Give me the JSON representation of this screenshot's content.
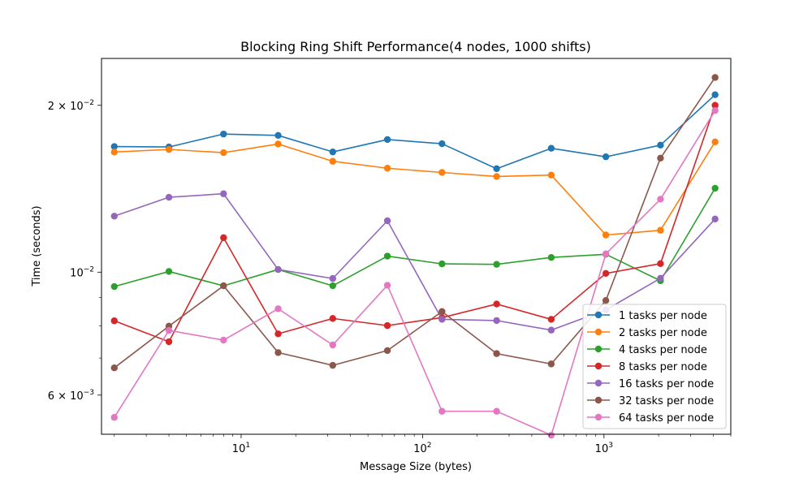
{
  "chart_data": {
    "type": "line",
    "title": "Blocking Ring Shift Performance(4 nodes, 1000 shifts)",
    "xlabel": "Message Size (bytes)",
    "ylabel": "Time (seconds)",
    "xscale": "log",
    "yscale": "log",
    "xlim": [
      1.7,
      5000
    ],
    "ylim": [
      0.0051,
      0.0243
    ],
    "x_tick_labels": [
      {
        "value": 10,
        "base": "10",
        "exp": "1"
      },
      {
        "value": 100,
        "base": "10",
        "exp": "2"
      },
      {
        "value": 1000,
        "base": "10",
        "exp": "3"
      }
    ],
    "y_tick_labels": [
      {
        "value": 0.006,
        "mantissa": "6 × 10",
        "exp": "−3"
      },
      {
        "value": 0.01,
        "mantissa": "10",
        "exp": "−2"
      },
      {
        "value": 0.02,
        "mantissa": "2 × 10",
        "exp": "−2"
      }
    ],
    "grid": false,
    "legend_position": "lower-right",
    "x": [
      2,
      4,
      8,
      16,
      32,
      64,
      128,
      256,
      512,
      1024,
      2048,
      4096
    ],
    "series": [
      {
        "name": "1 tasks per node",
        "color": "#1f77b4",
        "values": [
          0.01685,
          0.01682,
          0.01775,
          0.01765,
          0.01648,
          0.01735,
          0.01705,
          0.01537,
          0.01673,
          0.01615,
          0.01695,
          0.0209
        ]
      },
      {
        "name": "2 tasks per node",
        "color": "#ff7f0e",
        "values": [
          0.01647,
          0.01665,
          0.01643,
          0.01703,
          0.01585,
          0.0154,
          0.01513,
          0.01488,
          0.01497,
          0.01167,
          0.0119,
          0.01718
        ]
      },
      {
        "name": "4 tasks per node",
        "color": "#2ca02c",
        "values": [
          0.00942,
          0.01003,
          0.00945,
          0.01011,
          0.00945,
          0.01069,
          0.01035,
          0.01033,
          0.01063,
          0.01077,
          0.00965,
          0.01417
        ]
      },
      {
        "name": "8 tasks per node",
        "color": "#d62728",
        "values": [
          0.00817,
          0.00749,
          0.01154,
          0.00774,
          0.00825,
          0.00801,
          0.00828,
          0.00876,
          0.00822,
          0.00995,
          0.01036,
          0.02
        ]
      },
      {
        "name": "16 tasks per node",
        "color": "#9467bd",
        "values": [
          0.01262,
          0.01365,
          0.01385,
          0.01011,
          0.00974,
          0.01238,
          0.00822,
          0.00818,
          0.00786,
          0.00855,
          0.00975,
          0.01247
        ]
      },
      {
        "name": "32 tasks per node",
        "color": "#8c564b",
        "values": [
          0.00672,
          0.00799,
          0.00945,
          0.00716,
          0.00679,
          0.00722,
          0.00849,
          0.00713,
          0.00683,
          0.00889,
          0.01606,
          0.02245
        ]
      },
      {
        "name": "64 tasks per node",
        "color": "#e377c2",
        "values": [
          0.00547,
          0.00785,
          0.00754,
          0.00859,
          0.00739,
          0.00947,
          0.00561,
          0.00561,
          0.00508,
          0.01079,
          0.01354,
          0.01957
        ]
      }
    ]
  }
}
